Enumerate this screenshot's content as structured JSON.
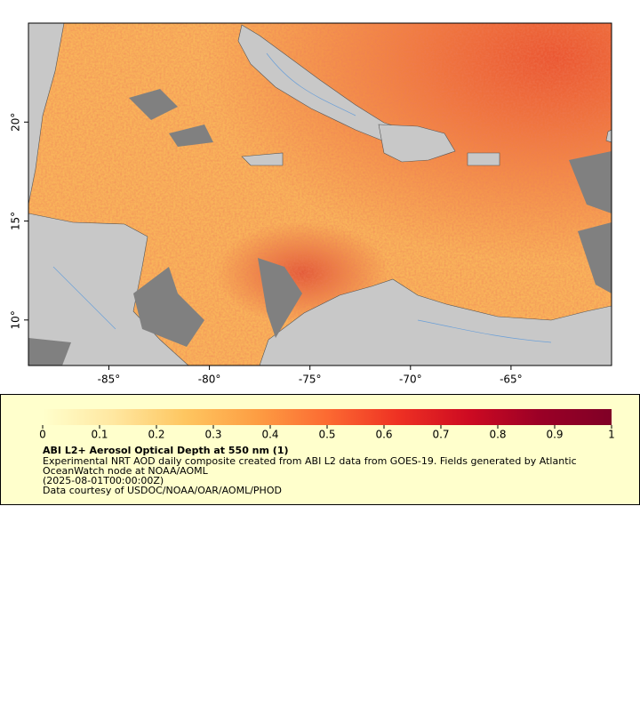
{
  "map": {
    "xlim": [
      -89,
      -60
    ],
    "ylim": [
      7.7,
      25
    ],
    "xticks": [
      {
        "value": -85,
        "label": "-85°"
      },
      {
        "value": -80,
        "label": "-80°"
      },
      {
        "value": -75,
        "label": "-75°"
      },
      {
        "value": -70,
        "label": "-70°"
      },
      {
        "value": -65,
        "label": "-65°"
      }
    ],
    "yticks": [
      {
        "value": 10,
        "label": "10°"
      },
      {
        "value": 15,
        "label": "15°"
      },
      {
        "value": 20,
        "label": "20°"
      }
    ]
  },
  "colorbar": {
    "range": [
      0,
      1
    ],
    "ticks": [
      0,
      0.1,
      0.2,
      0.3,
      0.4,
      0.5,
      0.6,
      0.7,
      0.8,
      0.9,
      1
    ],
    "colors": [
      "#ffffcc",
      "#ffe7a0",
      "#fec660",
      "#fd9e43",
      "#fc6a32",
      "#ee3123",
      "#cd0a22",
      "#9a0026",
      "#800026"
    ]
  },
  "legend": {
    "title": "ABI L2+ Aerosol Optical Depth at 550 nm (1)",
    "lines": [
      "Experimental NRT AOD daily composite created from ABI L2 data from GOES-19. Fields generated by Atlantic",
      "OceanWatch node at NOAA/AOML",
      "(2025-08-01T00:00:00Z)",
      "Data courtesy of USDOC/NOAA/OAR/AOML/PHOD"
    ]
  }
}
